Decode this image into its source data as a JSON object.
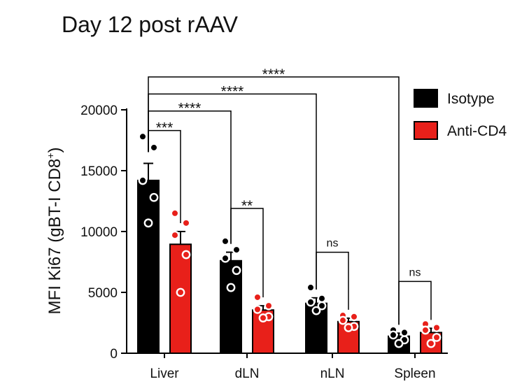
{
  "chart_data": {
    "type": "bar",
    "title": "Day 12 post rAAV",
    "xlabel": "",
    "ylabel": "MFI Ki67 (gBT-I CD8",
    "ylabel_superscript": "+",
    "ylabel_close": ")",
    "ylim": [
      0,
      20000
    ],
    "yticks": [
      0,
      5000,
      10000,
      15000,
      20000
    ],
    "ytick_labels": [
      "0",
      "5000",
      "10000",
      "15000",
      "20000"
    ],
    "categories": [
      "Liver",
      "dLN",
      "nLN",
      "Spleen"
    ],
    "legend_position": "top-right",
    "series": [
      {
        "name": "Isotype",
        "color": "#000000",
        "values": [
          14200,
          7600,
          4100,
          1400
        ],
        "sem": [
          1400,
          700,
          450,
          250
        ],
        "points": [
          [
            17800,
            16900,
            14200,
            12800,
            10700
          ],
          [
            9200,
            8500,
            7800,
            6800,
            5400
          ],
          [
            5400,
            4500,
            4200,
            3900,
            3500
          ],
          [
            1900,
            1700,
            1500,
            1100,
            800
          ]
        ]
      },
      {
        "name": "Anti-CD4",
        "color": "#e8201a",
        "values": [
          8950,
          3550,
          2600,
          1700
        ],
        "sem": [
          1050,
          350,
          280,
          350
        ],
        "points": [
          [
            11500,
            10700,
            9700,
            8100,
            5000
          ],
          [
            4600,
            3900,
            3600,
            3000,
            2900
          ],
          [
            3100,
            3000,
            2700,
            2200,
            2100
          ],
          [
            2400,
            2100,
            1900,
            1300,
            800
          ]
        ]
      }
    ],
    "annotations": [
      {
        "label": "***",
        "from": [
          0,
          0
        ],
        "to": [
          0,
          1
        ],
        "level": 18300
      },
      {
        "label": "****",
        "from": [
          0,
          0
        ],
        "to": [
          1,
          0
        ],
        "level": 19900
      },
      {
        "label": "****",
        "from": [
          0,
          0
        ],
        "to": [
          2,
          0
        ],
        "level": 21300
      },
      {
        "label": "****",
        "from": [
          0,
          0
        ],
        "to": [
          3,
          0
        ],
        "level": 22700
      },
      {
        "label": "**",
        "from": [
          1,
          0
        ],
        "to": [
          1,
          1
        ],
        "level": 11900
      },
      {
        "label": "ns",
        "from": [
          2,
          0
        ],
        "to": [
          2,
          1
        ],
        "level": 8300
      },
      {
        "label": "ns",
        "from": [
          3,
          0
        ],
        "to": [
          3,
          1
        ],
        "level": 5900
      }
    ]
  }
}
